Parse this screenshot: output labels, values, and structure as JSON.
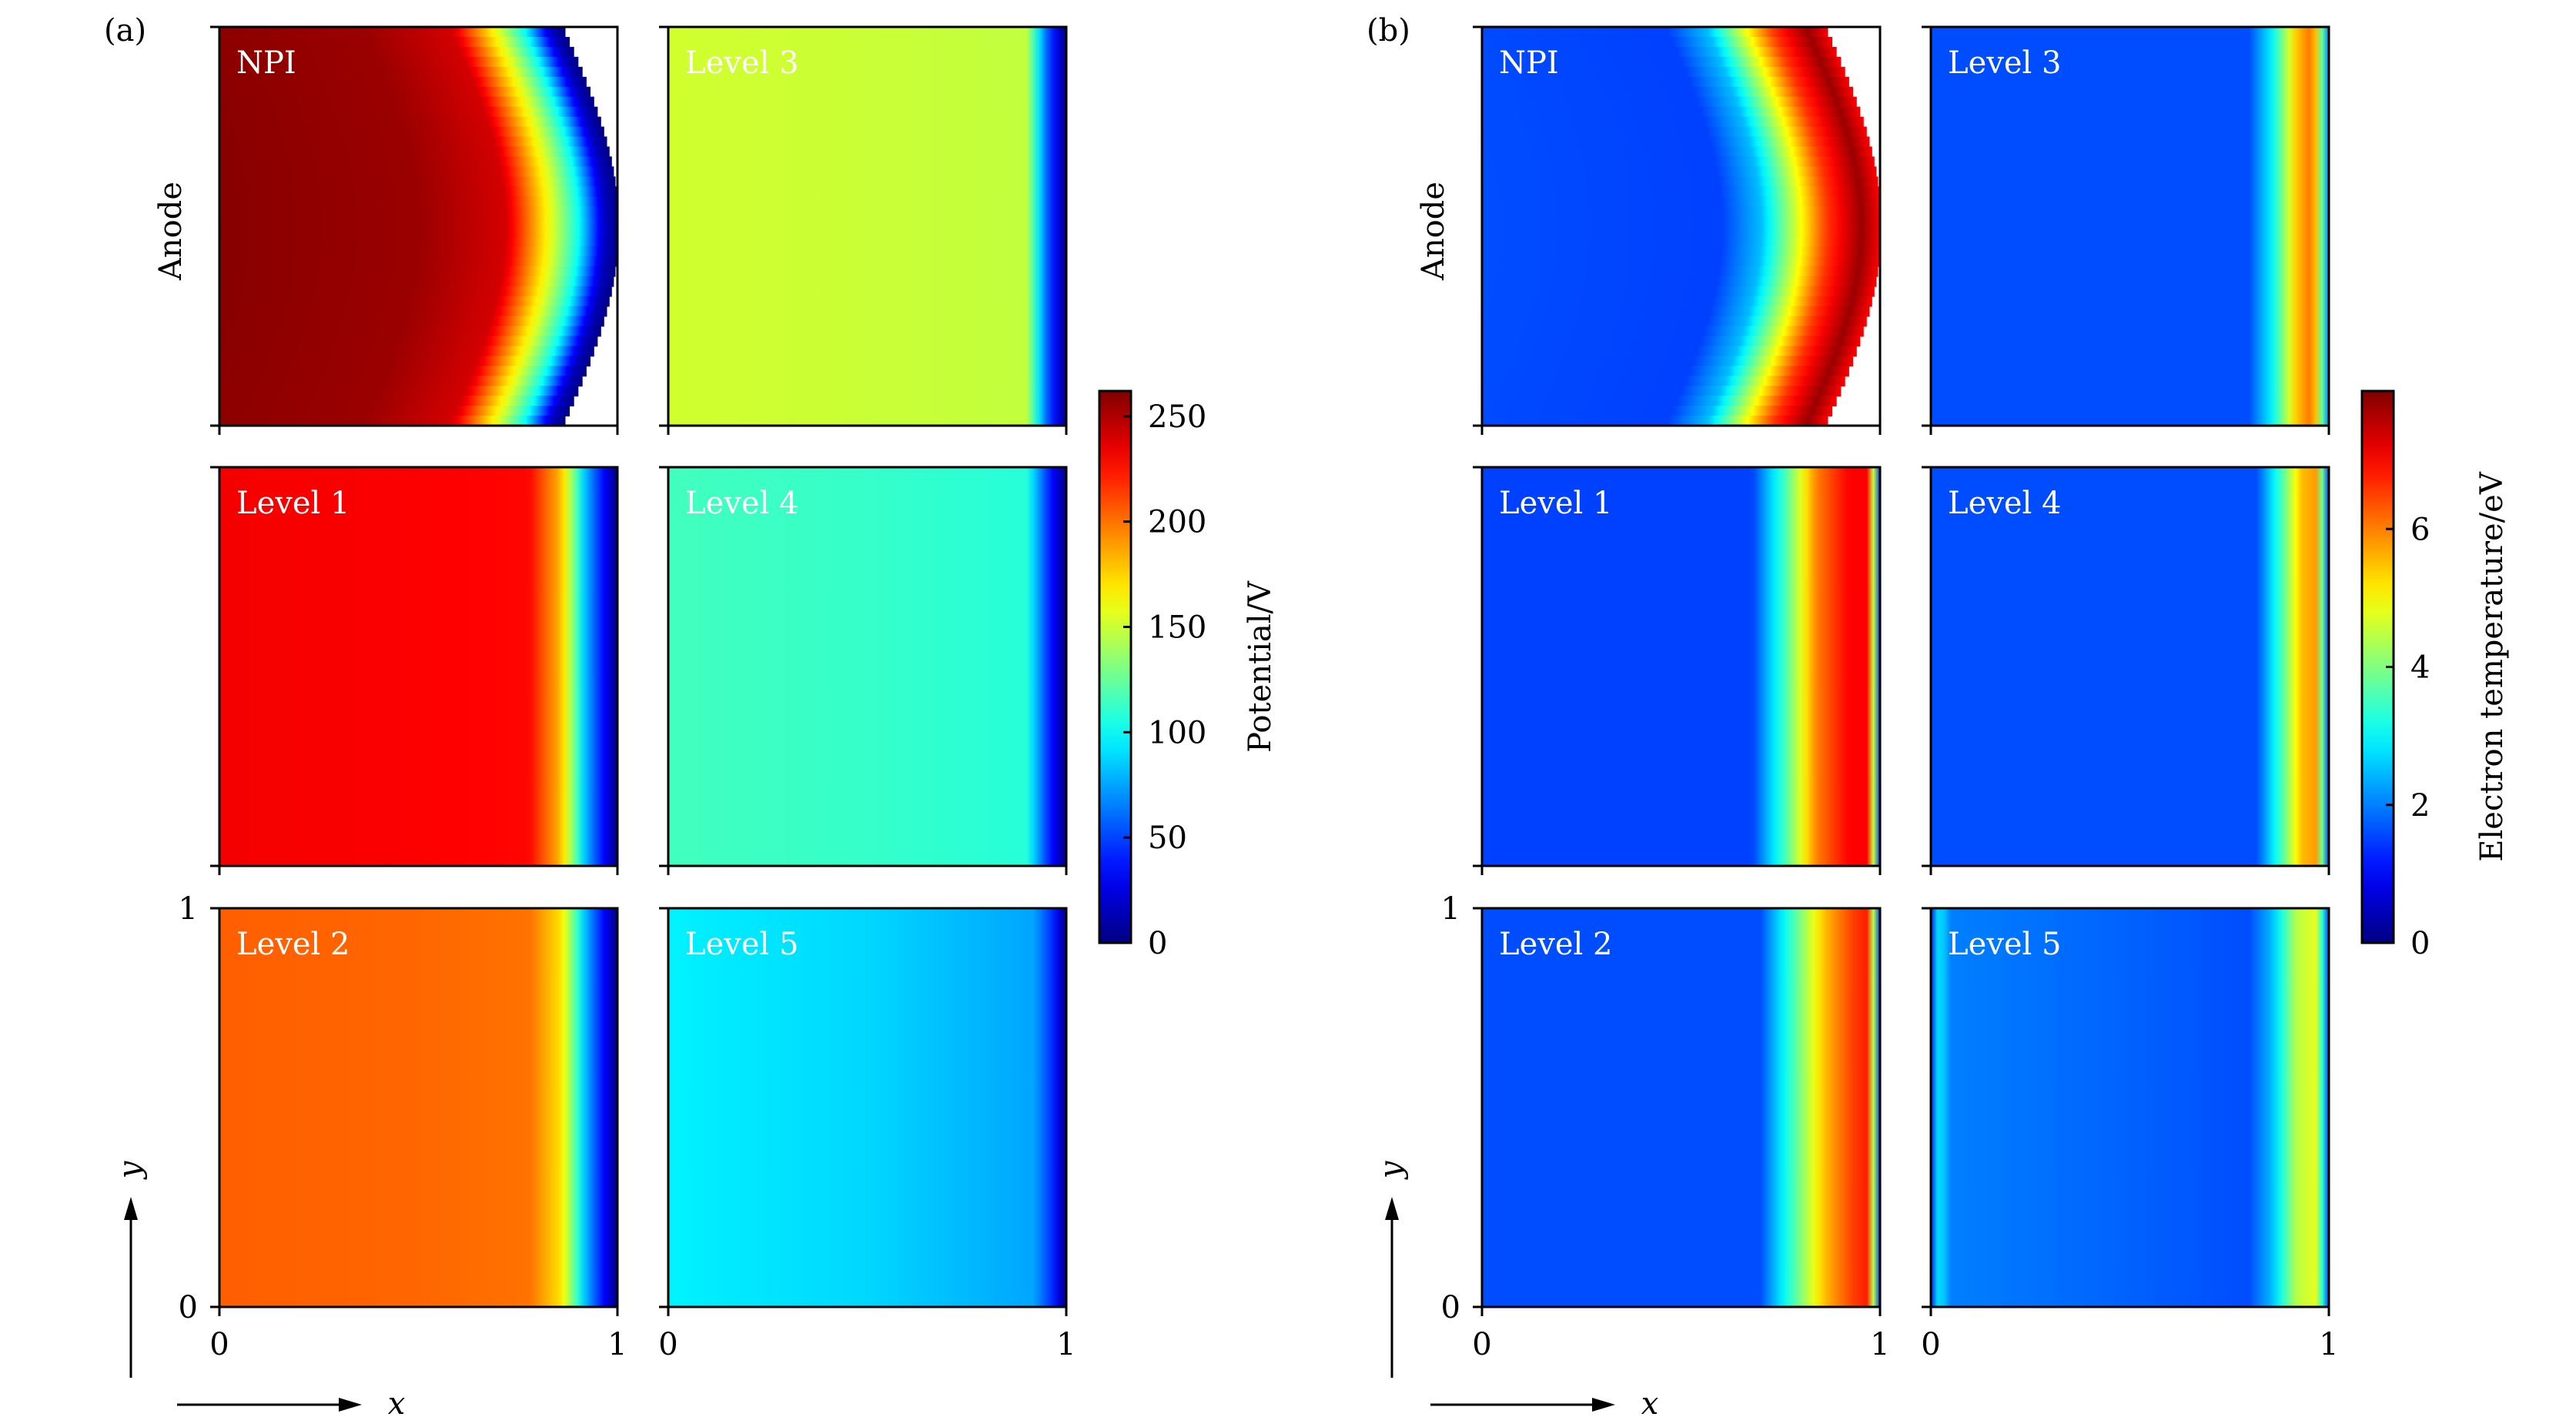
{
  "chart_data": [
    {
      "type": "heatmap",
      "panel_label": "(a)",
      "quantity": "potential",
      "colormap": "jet",
      "colorbar": {
        "label": "Potential/V",
        "range": [
          0,
          262
        ],
        "ticks": [
          0,
          50,
          100,
          150,
          200,
          250
        ],
        "tick_labels": [
          "0",
          "50",
          "100",
          "150",
          "200",
          "250"
        ]
      },
      "axes": {
        "xlabel": "x",
        "ylabel": "y",
        "row_label": "Anode",
        "xlim": [
          0,
          1
        ],
        "ylim": [
          0,
          1
        ],
        "x_tick_labels": [
          "0",
          "1"
        ],
        "y_tick_labels": [
          "0",
          "1"
        ]
      },
      "subplots": [
        {
          "title": "NPI",
          "edge_x_anode": 0.72,
          "edge_x_mid": 0.86,
          "profile_x": [
            0,
            0.5,
            0.72,
            0.84,
            0.9,
            0.96,
            1.0
          ],
          "profile_value": [
            260,
            255,
            240,
            150,
            100,
            20,
            0
          ]
        },
        {
          "title": "Level 3",
          "edge_x_anode": 0.92,
          "edge_x_mid": 0.92,
          "profile_x": [
            0,
            0.5,
            0.9,
            0.95,
            1.0
          ],
          "profile_value": [
            152,
            150,
            148,
            60,
            0
          ]
        },
        {
          "title": "Level 1",
          "edge_x_anode": 0.82,
          "edge_x_mid": 0.82,
          "profile_x": [
            0,
            0.5,
            0.78,
            0.86,
            0.92,
            1.0
          ],
          "profile_value": [
            232,
            230,
            228,
            180,
            80,
            0
          ]
        },
        {
          "title": "Level 4",
          "edge_x_anode": 0.92,
          "edge_x_mid": 0.92,
          "profile_x": [
            0,
            0.5,
            0.9,
            0.95,
            1.0
          ],
          "profile_value": [
            115,
            112,
            108,
            50,
            0
          ]
        },
        {
          "title": "Level 2",
          "edge_x_anode": 0.82,
          "edge_x_mid": 0.82,
          "profile_x": [
            0,
            0.5,
            0.78,
            0.86,
            0.92,
            1.0
          ],
          "profile_value": [
            205,
            203,
            200,
            170,
            80,
            0
          ]
        },
        {
          "title": "Level 5",
          "edge_x_anode": 0.94,
          "edge_x_mid": 0.94,
          "profile_x": [
            0,
            0.5,
            0.92,
            0.97,
            1.0
          ],
          "profile_value": [
            95,
            88,
            75,
            40,
            0
          ]
        }
      ]
    },
    {
      "type": "heatmap",
      "panel_label": "(b)",
      "quantity": "electron temperature",
      "colormap": "jet",
      "colorbar": {
        "label": "Electron temperature/eV",
        "range": [
          0,
          8
        ],
        "ticks": [
          0,
          2,
          4,
          6
        ],
        "tick_labels": [
          "0",
          "2",
          "4",
          "6"
        ]
      },
      "axes": {
        "xlabel": "x",
        "ylabel": "y",
        "row_label": "Anode",
        "xlim": [
          0,
          1
        ],
        "ylim": [
          0,
          1
        ],
        "x_tick_labels": [
          "0",
          "1"
        ],
        "y_tick_labels": [
          "0",
          "1"
        ]
      },
      "subplots": [
        {
          "title": "NPI",
          "edge_x_anode": 0.62,
          "edge_x_mid": 0.76,
          "profile_x": [
            0,
            0.6,
            0.7,
            0.78,
            0.86,
            0.95,
            1.0
          ],
          "profile_value": [
            1.6,
            1.5,
            2.5,
            4.5,
            6.5,
            7.8,
            7.0
          ]
        },
        {
          "title": "Level 3",
          "edge_x_anode": 0.88,
          "edge_x_mid": 0.88,
          "profile_x": [
            0,
            0.8,
            0.86,
            0.92,
            0.96,
            1.0
          ],
          "profile_value": [
            1.6,
            1.6,
            3.0,
            5.5,
            6.2,
            2.0
          ]
        },
        {
          "title": "Level 1",
          "edge_x_anode": 0.76,
          "edge_x_mid": 0.76,
          "profile_x": [
            0,
            0.68,
            0.76,
            0.84,
            0.92,
            0.97,
            1.0
          ],
          "profile_value": [
            1.5,
            1.5,
            3.5,
            6.0,
            7.0,
            7.0,
            1.5
          ]
        },
        {
          "title": "Level 4",
          "edge_x_anode": 0.88,
          "edge_x_mid": 0.88,
          "profile_x": [
            0,
            0.82,
            0.88,
            0.93,
            0.97,
            1.0
          ],
          "profile_value": [
            1.6,
            1.6,
            3.5,
            5.5,
            5.8,
            1.5
          ]
        },
        {
          "title": "Level 2",
          "edge_x_anode": 0.76,
          "edge_x_mid": 0.76,
          "profile_x": [
            0,
            0.7,
            0.78,
            0.86,
            0.93,
            0.97,
            1.0
          ],
          "profile_value": [
            1.6,
            1.6,
            3.5,
            5.5,
            6.5,
            6.8,
            1.5
          ]
        },
        {
          "title": "Level 5",
          "edge_x_anode": 0.88,
          "edge_x_mid": 0.88,
          "profile_x": [
            0,
            0.02,
            0.05,
            0.8,
            0.86,
            0.92,
            0.97,
            1.0
          ],
          "profile_value": [
            1.2,
            3.0,
            2.0,
            1.6,
            2.5,
            4.5,
            4.8,
            1.5
          ]
        }
      ]
    }
  ]
}
